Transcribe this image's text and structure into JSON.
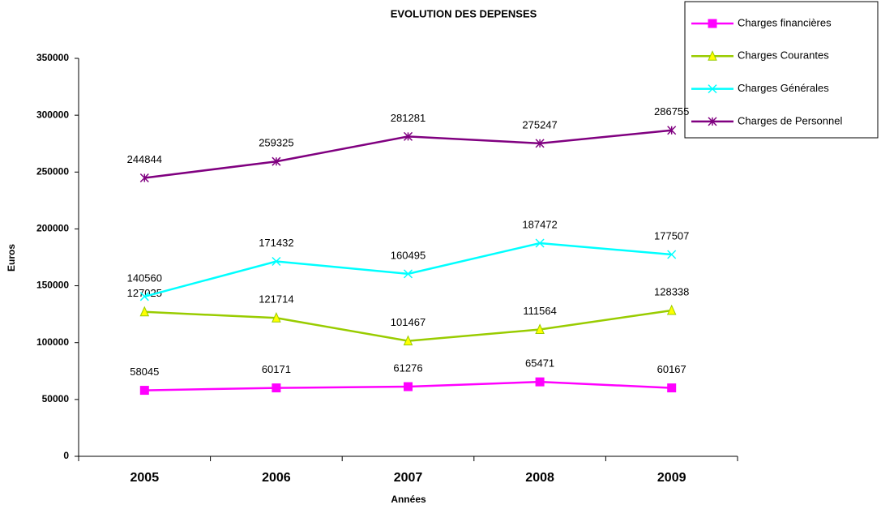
{
  "chart_data": {
    "type": "line",
    "title": "EVOLUTION DES DEPENSES",
    "x_label": "Années",
    "y_label": "Euros",
    "categories": [
      "2005",
      "2006",
      "2007",
      "2008",
      "2009"
    ],
    "ylim": [
      0,
      350000
    ],
    "yticks": [
      0,
      50000,
      100000,
      150000,
      200000,
      250000,
      300000,
      350000
    ],
    "series": [
      {
        "name": "Charges financières",
        "color": "#ff00ff",
        "marker": "square",
        "values": [
          58045,
          60171,
          61276,
          65471,
          60167
        ]
      },
      {
        "name": "Charges Courantes",
        "color": "#99cc00",
        "marker": "triangle",
        "values": [
          127025,
          121714,
          101467,
          111564,
          128338
        ]
      },
      {
        "name": "Charges Générales",
        "color": "#00ffff",
        "marker": "x",
        "values": [
          140560,
          171432,
          160495,
          187472,
          177507
        ]
      },
      {
        "name": "Charges de Personnel",
        "color": "#800080",
        "marker": "star",
        "values": [
          244844,
          259325,
          281281,
          275247,
          286755
        ]
      }
    ]
  }
}
